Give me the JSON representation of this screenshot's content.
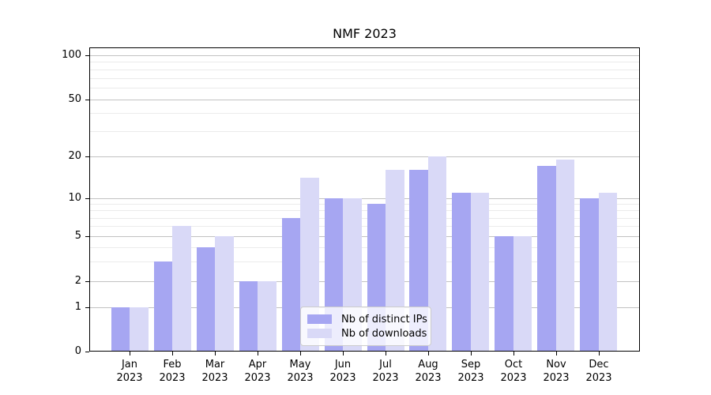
{
  "chart_data": {
    "type": "bar",
    "title": "NMF 2023",
    "categories": [
      "Jan",
      "Feb",
      "Mar",
      "Apr",
      "May",
      "Jun",
      "Jul",
      "Aug",
      "Sep",
      "Oct",
      "Nov",
      "Dec"
    ],
    "x_year_line": "2023",
    "series": [
      {
        "name": "Nb of distinct IPs",
        "color": "#a6a6f2",
        "values": [
          1,
          3,
          4,
          2,
          7,
          10,
          9,
          16,
          11,
          5,
          17,
          10
        ]
      },
      {
        "name": "Nb of downloads",
        "color": "#d9d9f7",
        "values": [
          1,
          6,
          5,
          2,
          14,
          10,
          16,
          20,
          11,
          5,
          19,
          11
        ]
      }
    ],
    "yscale": "symlog",
    "y_ticks": [
      0,
      1,
      2,
      5,
      10,
      20,
      50,
      100
    ],
    "y_tick_labels": [
      "0",
      "1",
      "2",
      "5",
      "10",
      "20",
      "50",
      "100"
    ],
    "y_minor_gridlines": [
      3,
      4,
      6,
      7,
      8,
      9,
      30,
      40,
      60,
      70,
      80,
      90
    ],
    "ylim": [
      0,
      115
    ],
    "grid": true,
    "legend_position": "lower center",
    "colors": {
      "axis": "#000000",
      "grid_major": "#c2c2c2",
      "grid_minor": "#ebebeb"
    }
  }
}
